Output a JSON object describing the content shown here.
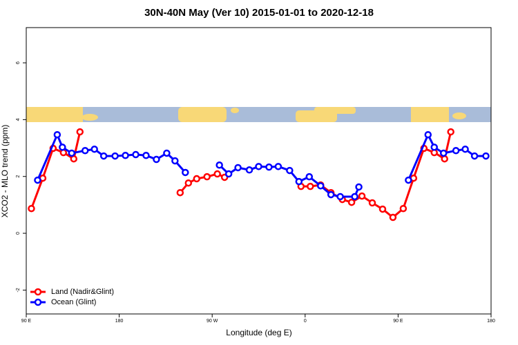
{
  "chart_data": {
    "type": "line",
    "title": "30N-40N May (Ver 10)   2015-01-01 to 2020-12-18",
    "x_label": "Longitude (deg E)",
    "y_label": "XCO2 - MLO trend (ppm)",
    "xlim": [
      90,
      540
    ],
    "ylim": [
      -2.84,
      7.24
    ],
    "xticks": [
      {
        "value": 90,
        "label": "90 E"
      },
      180,
      {
        "value": 270,
        "label": "90 W"
      },
      {
        "value": 360,
        "label": "0"
      },
      {
        "value": 450,
        "label": "90 E"
      },
      {
        "value": 540,
        "label": "180"
      }
    ],
    "yticks": [
      -2,
      0,
      2,
      4,
      6
    ],
    "legend": "bottom-left",
    "series": [
      {
        "name": "Land (Nadir&Glint)",
        "color": "#ff0000",
        "x": [
          95,
          106,
          116,
          126,
          136,
          142,
          null,
          239,
          247,
          255,
          265,
          275,
          282,
          null,
          356,
          365,
          375,
          385,
          396,
          405,
          415,
          425,
          435,
          445,
          455,
          465,
          475,
          485,
          495,
          501
        ],
        "values": [
          0.87,
          1.94,
          2.99,
          2.84,
          2.62,
          3.57,
          null,
          1.43,
          1.77,
          1.92,
          1.99,
          2.09,
          1.97,
          null,
          1.65,
          1.65,
          1.7,
          1.43,
          1.19,
          1.09,
          1.31,
          1.07,
          0.85,
          0.56,
          0.87,
          1.94,
          2.99,
          2.84,
          2.62,
          3.57
        ]
      },
      {
        "name": "Ocean (Glint)",
        "color": "#0000ff",
        "x": [
          101,
          120,
          125,
          134,
          147,
          156,
          165,
          176,
          186,
          196,
          206,
          216,
          226,
          234,
          244,
          null,
          277,
          286,
          295,
          306,
          315,
          325,
          334,
          345,
          354,
          364,
          375,
          385,
          394,
          408,
          412,
          null,
          460,
          479,
          485,
          494,
          506,
          515,
          524,
          535
        ],
        "values": [
          1.87,
          3.47,
          3.03,
          2.82,
          2.91,
          2.96,
          2.72,
          2.72,
          2.74,
          2.77,
          2.74,
          2.6,
          2.82,
          2.55,
          2.14,
          null,
          2.4,
          2.09,
          2.31,
          2.23,
          2.35,
          2.33,
          2.35,
          2.21,
          1.82,
          1.99,
          1.67,
          1.36,
          1.29,
          1.29,
          1.63,
          null,
          1.87,
          3.47,
          3.03,
          2.82,
          2.91,
          2.96,
          2.72,
          2.72
        ]
      }
    ]
  }
}
